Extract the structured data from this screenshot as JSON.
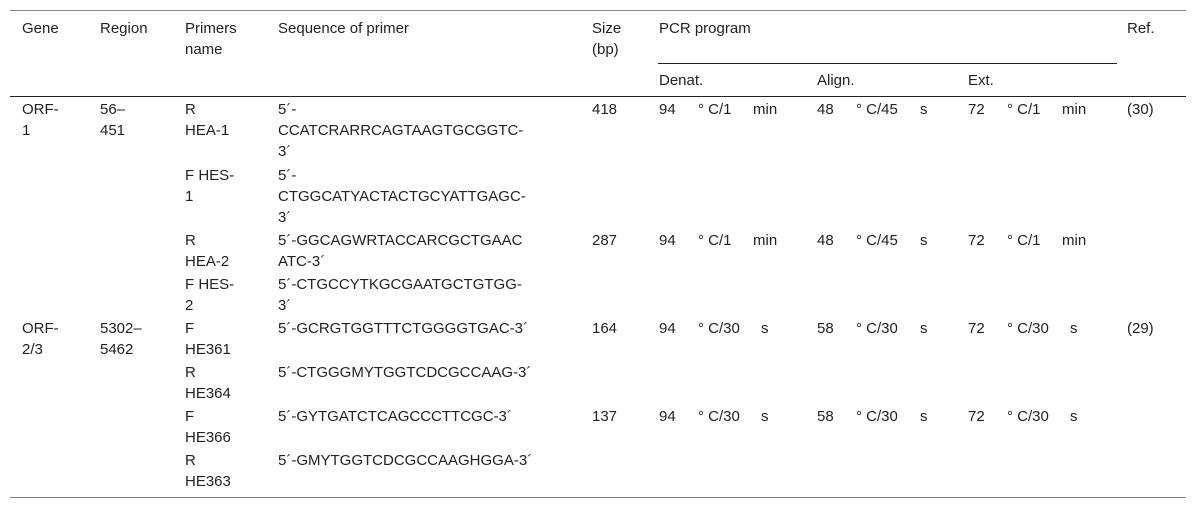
{
  "header": {
    "gene": "Gene",
    "region": "Region",
    "primers_name": [
      "Primers",
      "name"
    ],
    "sequence": "Sequence of primer",
    "size": [
      "Size",
      "(bp)"
    ],
    "pcr_program": "PCR program",
    "ref": "Ref.",
    "denat": "Denat.",
    "align": "Align.",
    "ext": "Ext."
  },
  "rows": [
    {
      "gene": [
        "ORF-",
        "1"
      ],
      "region": [
        "56–",
        "451"
      ],
      "primer": [
        "R",
        "HEA-1"
      ],
      "sequence": [
        "5´-",
        "CCATCRARRCAGTAAGTGCGGTC-",
        "3´"
      ],
      "size": "418",
      "denat": [
        "94",
        "° C/1",
        "min"
      ],
      "align": [
        "48",
        "° C/45",
        "s"
      ],
      "ext": [
        "72",
        "° C/1",
        "min"
      ],
      "ref": "(30)"
    },
    {
      "primer": [
        "F HES-",
        "1"
      ],
      "sequence": [
        "5´-",
        "CTGGCATYACTACTGCYATTGAGC-",
        "3´"
      ]
    },
    {
      "primer": [
        "R",
        "HEA-2"
      ],
      "sequence": [
        "5´-GGCAGWRTACCARCGCTGAAC",
        "ATC-3´"
      ],
      "size": "287",
      "denat": [
        "94",
        "° C/1",
        "min"
      ],
      "align": [
        "48",
        "° C/45",
        "s"
      ],
      "ext": [
        "72",
        "° C/1",
        "min"
      ]
    },
    {
      "primer": [
        "F HES-",
        "2"
      ],
      "sequence": [
        "5´-CTGCCYTKGCGAATGCTGTGG-",
        "3´"
      ]
    },
    {
      "gene": [
        "ORF-",
        "2/3"
      ],
      "region": [
        "5302–",
        "5462"
      ],
      "primer": [
        "F",
        "HE361"
      ],
      "sequence": [
        "5´-GCRGTGGTTTCTGGGGTGAC-3´"
      ],
      "size": "164",
      "denat": [
        "94",
        "° C/30",
        "s"
      ],
      "align": [
        "58",
        "° C/30",
        "s"
      ],
      "ext": [
        "72",
        "° C/30",
        "s"
      ],
      "ref": "(29)"
    },
    {
      "primer": [
        "R",
        "HE364"
      ],
      "sequence": [
        "5´-CTGGGMYTGGTCDCGCCAAG-3´"
      ]
    },
    {
      "primer": [
        "F",
        "HE366"
      ],
      "sequence": [
        "5´-GYTGATCTCAGCCCTTCGC-3´"
      ],
      "size": "137",
      "denat": [
        "94",
        "° C/30",
        "s"
      ],
      "align": [
        "58",
        "° C/30",
        "s"
      ],
      "ext": [
        "72",
        "° C/30",
        "s"
      ]
    },
    {
      "primer": [
        "R",
        "HE363"
      ],
      "sequence": [
        "5´-GMYTGGTCDCGCCAAGHGGA-3´"
      ]
    }
  ]
}
